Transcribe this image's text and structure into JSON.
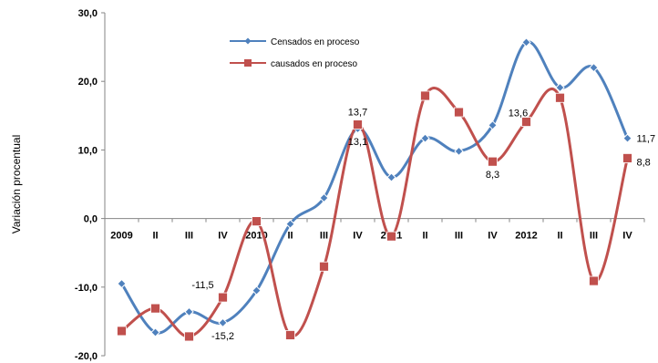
{
  "chart_data": {
    "type": "line",
    "title": "",
    "xlabel": "",
    "ylabel": "Variación procentual",
    "ylim": [
      -20,
      30
    ],
    "yticks": [
      "30,0",
      "20,0",
      "10,0",
      "0,0",
      "-10,0",
      "-20,0"
    ],
    "categories": [
      "2009",
      "II",
      "III",
      "IV",
      "2010",
      "II",
      "III",
      "IV",
      "2011",
      "II",
      "III",
      "IV",
      "2012",
      "II",
      "III",
      "IV"
    ],
    "legend_position": "top",
    "grid": false,
    "series": [
      {
        "name": "Censados en proceso",
        "color": "#4f81bd",
        "marker": "diamond",
        "values": [
          -9.5,
          -16.6,
          -13.6,
          -15.2,
          -10.5,
          -0.8,
          3.0,
          13.1,
          6.0,
          11.7,
          9.8,
          13.6,
          25.7,
          19.1,
          22.0,
          11.7
        ]
      },
      {
        "name": "causados en proceso",
        "color": "#c0504d",
        "marker": "square",
        "values": [
          -16.4,
          -13.1,
          -17.2,
          -11.5,
          -0.4,
          -17.0,
          -7.0,
          13.7,
          -2.6,
          17.9,
          15.5,
          8.3,
          14.1,
          17.6,
          -9.1,
          8.8
        ]
      }
    ],
    "annotations": [
      {
        "text": "-11,5",
        "series": 1,
        "index": 3,
        "pos": "above-left"
      },
      {
        "text": "-15,2",
        "series": 0,
        "index": 3,
        "pos": "below"
      },
      {
        "text": "13,7",
        "series": 1,
        "index": 7,
        "pos": "above"
      },
      {
        "text": "13,1",
        "series": 0,
        "index": 7,
        "pos": "below"
      },
      {
        "text": "13,6",
        "series": 0,
        "index": 11,
        "pos": "above-right"
      },
      {
        "text": "8,3",
        "series": 1,
        "index": 11,
        "pos": "below"
      },
      {
        "text": "11,7",
        "series": 0,
        "index": 15,
        "pos": "right"
      },
      {
        "text": "8,8",
        "series": 1,
        "index": 15,
        "pos": "right-below"
      }
    ]
  }
}
